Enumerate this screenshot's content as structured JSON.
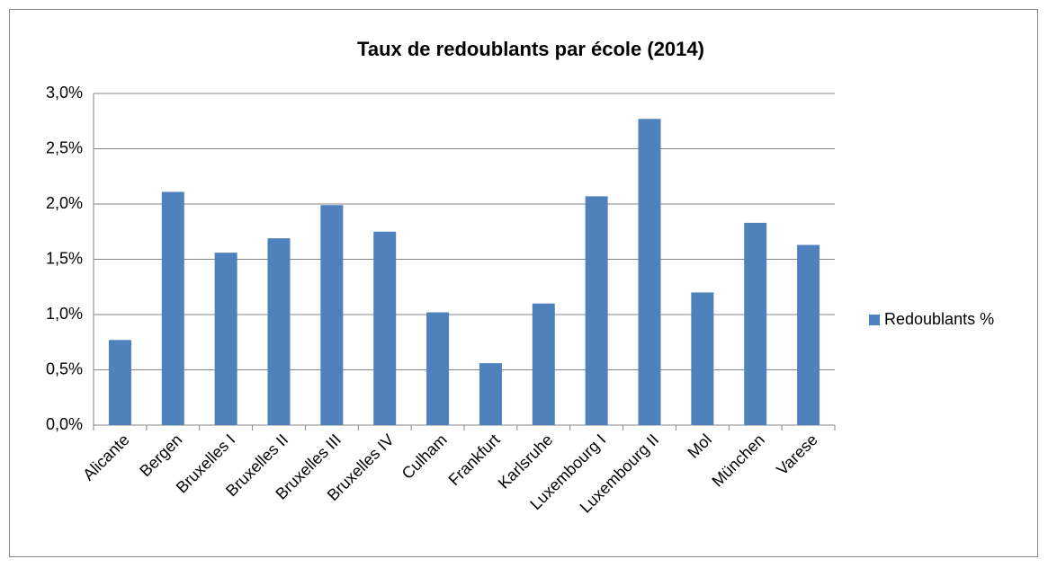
{
  "chart_data": {
    "type": "bar",
    "title": "Taux de redoublants par école (2014)",
    "categories": [
      "Alicante",
      "Bergen",
      "Bruxelles I",
      "Bruxelles II",
      "Bruxelles III",
      "Bruxelles IV",
      "Culham",
      "Frankfurt",
      "Karlsruhe",
      "Luxembourg I",
      "Luxembourg II",
      "Mol",
      "München",
      "Varese"
    ],
    "series": [
      {
        "name": "Redoublants %",
        "color": "#4f81bd",
        "values": [
          0.77,
          2.11,
          1.56,
          1.69,
          1.99,
          1.75,
          1.02,
          0.56,
          1.1,
          2.07,
          2.77,
          1.2,
          1.83,
          1.63
        ]
      }
    ],
    "ylim": [
      0,
      3
    ],
    "yticks": [
      {
        "value": 0,
        "label": "0,0%"
      },
      {
        "value": 0.5,
        "label": "0,5%"
      },
      {
        "value": 1,
        "label": "1,0%"
      },
      {
        "value": 1.5,
        "label": "1,5%"
      },
      {
        "value": 2,
        "label": "2,0%"
      },
      {
        "value": 2.5,
        "label": "2,5%"
      },
      {
        "value": 3,
        "label": "3,0%"
      }
    ],
    "grid": true,
    "legend": "right"
  }
}
